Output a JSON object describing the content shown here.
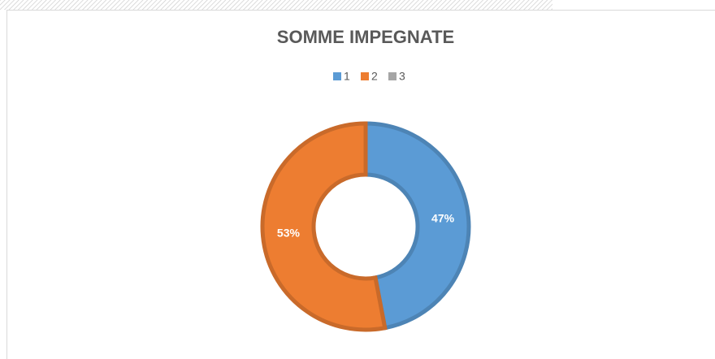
{
  "chart_data": {
    "type": "donut",
    "title": "SOMME IMPEGNATE",
    "categories": [
      "1",
      "2",
      "3"
    ],
    "values": [
      47,
      53,
      0
    ],
    "value_labels": [
      "47%",
      "53%",
      null
    ],
    "colors": [
      "#5b9bd5",
      "#ed7d31",
      "#a5a5a5"
    ],
    "legend": "top"
  }
}
